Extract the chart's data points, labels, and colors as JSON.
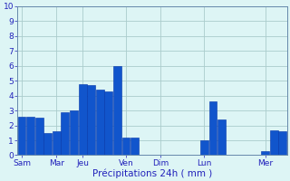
{
  "bar_values": [
    2.6,
    2.6,
    2.5,
    1.5,
    1.6,
    2.9,
    3.0,
    4.8,
    4.7,
    4.4,
    4.3,
    6.0,
    1.2,
    1.2,
    0,
    0,
    0,
    0,
    0,
    0,
    0,
    1.0,
    3.6,
    2.4,
    0,
    0,
    0,
    0,
    0.3,
    1.7,
    1.6
  ],
  "n_bars": 31,
  "day_labels": [
    "Sam",
    "Mar",
    "Jeu",
    "Ven",
    "Dim",
    "Lun",
    "Mer"
  ],
  "day_tick_positions": [
    0,
    4,
    7,
    12,
    16,
    21,
    28
  ],
  "ylim": [
    0,
    10
  ],
  "yticks": [
    0,
    1,
    2,
    3,
    4,
    5,
    6,
    7,
    8,
    9,
    10
  ],
  "bar_color": "#1155cc",
  "bar_edge_color": "#0033aa",
  "grid_color": "#aacccc",
  "bg_color": "#ddf5f5",
  "xlabel": "Précipitations 24h ( mm )",
  "xlabel_color": "#2222bb",
  "tick_color": "#2222bb",
  "axis_color": "#6688aa",
  "fig_width": 3.2,
  "fig_height": 2.0,
  "dpi": 100
}
